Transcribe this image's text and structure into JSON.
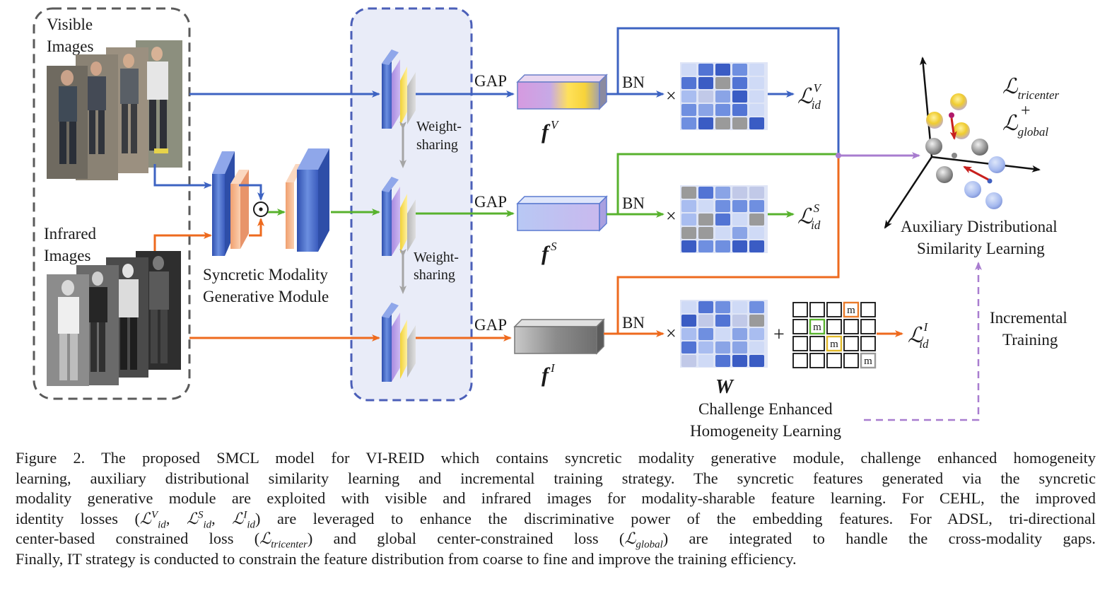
{
  "diagram": {
    "visible_images_label": [
      "Visible",
      "Images"
    ],
    "infrared_images_label": [
      "Infrared",
      "Images"
    ],
    "smgm_label": [
      "Syncretic Modality",
      "Generative Module"
    ],
    "odot_symbol": "⊙",
    "weight_sharing_1": [
      "Weight-",
      "sharing"
    ],
    "weight_sharing_2": [
      "Weight-",
      "sharing"
    ],
    "gap_labels": [
      "GAP",
      "GAP",
      "GAP"
    ],
    "bn_labels": [
      "BN",
      "BN",
      "BN"
    ],
    "times_symbol": "×",
    "plus_symbol": "+",
    "feature_names": [
      "f",
      "f",
      "f"
    ],
    "feature_superscripts": [
      "V",
      "S",
      "I"
    ],
    "loss_main": "ℒ",
    "loss_sub": "id",
    "loss_superscripts": [
      "V",
      "S",
      "I"
    ],
    "w_label": "W",
    "mask_label": "m",
    "cehl_label": [
      "Challenge Enhanced",
      "Homogeneity Learning"
    ],
    "adsl_label": [
      "Auxiliary Distributional",
      "Similarity Learning"
    ],
    "incremental_label": [
      "Incremental",
      "Training"
    ],
    "loss_tricenter_sub": "tricenter",
    "loss_global_sub": "global",
    "colors": {
      "visible_path": "#3d63c2",
      "syncretic_path": "#58b22e",
      "infrared_path": "#ee6a1e",
      "adsl_path": "#a87ccf",
      "dashed_box": "#5a5a5a",
      "backbone_box": "#4b5fb8"
    }
  },
  "caption": {
    "lines": [
      "Figure 2. The proposed SMCL model for VI-REID which contains syncretic modality generative module, challenge enhanced homogeneity",
      "learning, auxiliary distributional similarity learning and incremental training strategy.  The syncretic features generated via the syncretic",
      "modality generative module are exploited with visible and infrared images for modality-sharable feature learning. For CEHL, the improved"
    ],
    "line4_a": "identity losses (",
    "line4_b": ") are leveraged to enhance the discriminative power of the embedding features.  For ADSL, tri-directional",
    "line5_a": "center-based constrained loss (",
    "line5_b": ") and global center-constrained loss (",
    "line5_c": ") are integrated to handle the cross-modality gaps.",
    "line6": "Finally, IT strategy is conducted to constrain the feature distribution from coarse to fine and improve the training efficiency."
  }
}
